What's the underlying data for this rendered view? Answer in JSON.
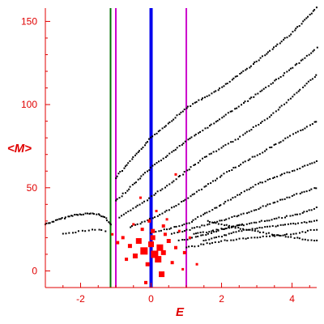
{
  "chart_data": {
    "type": "scatter",
    "title": "",
    "xlabel": "E",
    "ylabel": "<M>",
    "xlim": [
      -3.0,
      4.7
    ],
    "ylim": [
      -10,
      158
    ],
    "x_ticks": [
      -2,
      0,
      2,
      4
    ],
    "y_ticks": [
      0,
      50,
      100,
      150
    ],
    "x_tick_labels": [
      "-2",
      "0",
      "2",
      "4"
    ],
    "y_tick_labels": [
      "0",
      "50",
      "100",
      "150"
    ],
    "grid": false,
    "axis_color": "#e00000",
    "vertical_lines": [
      {
        "x": -1.15,
        "color": "#007000",
        "kind": "green-line"
      },
      {
        "x": -1.0,
        "color": "#cc00cc",
        "kind": "magenta-line-left"
      },
      {
        "x": 0.0,
        "color": "#0000ee",
        "kind": "blue-line"
      },
      {
        "x": 1.0,
        "color": "#cc00cc",
        "kind": "magenta-line-right"
      }
    ],
    "series": [
      {
        "color": "#000000",
        "marker": "dot",
        "bands": [
          {
            "points": [
              [
                -3.0,
                28
              ],
              [
                -2.6,
                31
              ],
              [
                -2.2,
                33.5
              ],
              [
                -1.8,
                34.5
              ],
              [
                -1.5,
                34
              ],
              [
                -1.3,
                32
              ],
              [
                -1.15,
                28
              ]
            ],
            "n": 40
          },
          {
            "points": [
              [
                -2.5,
                22
              ],
              [
                -2.0,
                24
              ],
              [
                -1.6,
                25
              ],
              [
                -1.3,
                24
              ]
            ],
            "n": 14
          },
          {
            "points": [
              [
                -1.0,
                56
              ],
              [
                -0.5,
                68
              ],
              [
                0.0,
                80
              ],
              [
                1.0,
                98
              ],
              [
                2.0,
                110
              ],
              [
                3.0,
                126
              ],
              [
                4.0,
                143
              ],
              [
                4.7,
                158
              ]
            ],
            "n": 110
          },
          {
            "points": [
              [
                -1.0,
                42
              ],
              [
                -0.5,
                52
              ],
              [
                0.0,
                62
              ],
              [
                1.0,
                78
              ],
              [
                2.0,
                92
              ],
              [
                3.0,
                106
              ],
              [
                4.0,
                122
              ],
              [
                4.7,
                134
              ]
            ],
            "n": 100
          },
          {
            "points": [
              [
                -0.9,
                32
              ],
              [
                -0.3,
                40
              ],
              [
                0.5,
                52
              ],
              [
                1.5,
                68
              ],
              [
                2.5,
                80
              ],
              [
                3.5,
                95
              ],
              [
                4.7,
                118
              ]
            ],
            "n": 90
          },
          {
            "points": [
              [
                -0.6,
                26
              ],
              [
                0.3,
                34
              ],
              [
                1.2,
                46
              ],
              [
                2.2,
                60
              ],
              [
                3.2,
                72
              ],
              [
                4.7,
                90
              ]
            ],
            "n": 80
          },
          {
            "points": [
              [
                0.0,
                23
              ],
              [
                1.0,
                28
              ],
              [
                2.0,
                40
              ],
              [
                3.0,
                52
              ],
              [
                4.0,
                60
              ],
              [
                4.7,
                66
              ]
            ],
            "n": 70
          },
          {
            "points": [
              [
                0.6,
                22
              ],
              [
                1.6,
                28
              ],
              [
                2.6,
                34
              ],
              [
                3.6,
                42
              ],
              [
                4.7,
                50
              ]
            ],
            "n": 60
          },
          {
            "points": [
              [
                1.2,
                22
              ],
              [
                2.2,
                26
              ],
              [
                3.2,
                30
              ],
              [
                4.2,
                34
              ],
              [
                4.7,
                38
              ]
            ],
            "n": 50
          },
          {
            "points": [
              [
                1.5,
                18
              ],
              [
                2.5,
                24
              ],
              [
                3.5,
                27
              ],
              [
                4.7,
                30
              ]
            ],
            "n": 45
          },
          {
            "points": [
              [
                1.0,
                14
              ],
              [
                2.0,
                18
              ],
              [
                3.0,
                20
              ],
              [
                4.0,
                22
              ],
              [
                4.7,
                25
              ]
            ],
            "n": 45
          },
          {
            "points": [
              [
                1.6,
                30
              ],
              [
                2.4,
                26
              ],
              [
                3.2,
                23
              ],
              [
                4.0,
                20
              ],
              [
                4.7,
                18
              ]
            ],
            "n": 40
          },
          {
            "points": [
              [
                0.8,
                18
              ],
              [
                1.4,
                21
              ],
              [
                2.0,
                25
              ],
              [
                2.6,
                28
              ]
            ],
            "n": 25
          }
        ]
      },
      {
        "color": "#ff0000",
        "marker": "square",
        "points": [
          [
            -0.2,
            12,
            4.5
          ],
          [
            0.1,
            10,
            4.5
          ],
          [
            0.25,
            14,
            4
          ],
          [
            0.0,
            16,
            3.5
          ],
          [
            -0.35,
            18,
            3.5
          ],
          [
            0.2,
            7,
            4
          ],
          [
            -0.1,
            4,
            2.5
          ],
          [
            0.35,
            11,
            3
          ],
          [
            -0.45,
            9,
            3
          ],
          [
            0.05,
            20,
            3
          ],
          [
            -0.6,
            15,
            2.5
          ],
          [
            0.5,
            18,
            2.5
          ],
          [
            -0.8,
            20,
            2
          ],
          [
            0.7,
            14,
            2
          ],
          [
            -0.25,
            25,
            2
          ],
          [
            0.35,
            27,
            2
          ],
          [
            -0.05,
            30,
            2
          ],
          [
            0.8,
            24,
            1.5
          ],
          [
            -0.95,
            17,
            2
          ],
          [
            0.95,
            11,
            2
          ],
          [
            0.3,
            -2,
            3.5
          ],
          [
            -0.15,
            -7,
            2
          ],
          [
            0.6,
            5,
            2
          ],
          [
            -0.7,
            7,
            2
          ],
          [
            1.1,
            20,
            1.5
          ],
          [
            -1.1,
            22,
            1.5
          ],
          [
            0.15,
            36,
            1.5
          ],
          [
            -0.3,
            44,
            1.5
          ],
          [
            0.7,
            58,
            1.5
          ],
          [
            0.9,
            1,
            1.5
          ],
          [
            1.3,
            4,
            1.5
          ],
          [
            0.45,
            31,
            1.5
          ],
          [
            -0.5,
            28,
            1.5
          ],
          [
            0.05,
            24,
            2.5
          ],
          [
            0.4,
            22,
            2
          ]
        ]
      }
    ]
  }
}
